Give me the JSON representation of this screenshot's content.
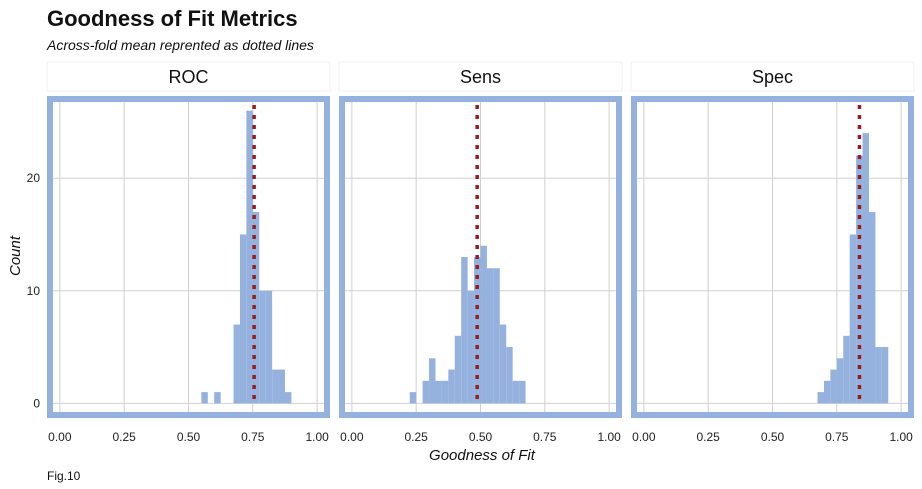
{
  "chart_data": {
    "type": "bar",
    "title": "Goodness of Fit Metrics",
    "subtitle": "Across-fold mean reprented as dotted lines",
    "xlabel": "Goodness of Fit",
    "ylabel": "Count",
    "caption": "Fig.10",
    "xlim": [
      -0.05,
      1.05
    ],
    "ylim": [
      -1.3,
      27.3
    ],
    "x_ticks": [
      "0.00",
      "0.25",
      "0.50",
      "0.75",
      "1.00"
    ],
    "x_tick_values": [
      0,
      0.25,
      0.5,
      0.75,
      1.0
    ],
    "y_ticks": [
      "0",
      "10",
      "20"
    ],
    "y_tick_values": [
      0,
      10,
      20
    ],
    "bin_width": 0.025,
    "grid": true,
    "colors": {
      "bar": "#95b1de",
      "panel_border": "#95b1de",
      "mean_line": "#9b1b1b",
      "grid": "#d0d0d0"
    },
    "panels": [
      {
        "name": "ROC",
        "mean": 0.755,
        "bins": [
          {
            "x": 0.5625,
            "count": 1
          },
          {
            "x": 0.6125,
            "count": 1
          },
          {
            "x": 0.6875,
            "count": 7
          },
          {
            "x": 0.7125,
            "count": 15
          },
          {
            "x": 0.7375,
            "count": 26
          },
          {
            "x": 0.7625,
            "count": 17
          },
          {
            "x": 0.7875,
            "count": 10
          },
          {
            "x": 0.8125,
            "count": 10
          },
          {
            "x": 0.8375,
            "count": 3
          },
          {
            "x": 0.8625,
            "count": 3
          },
          {
            "x": 0.8875,
            "count": 1
          }
        ]
      },
      {
        "name": "Sens",
        "mean": 0.487,
        "bins": [
          {
            "x": 0.2375,
            "count": 1
          },
          {
            "x": 0.2875,
            "count": 2
          },
          {
            "x": 0.3125,
            "count": 4
          },
          {
            "x": 0.3375,
            "count": 2
          },
          {
            "x": 0.3625,
            "count": 2
          },
          {
            "x": 0.3875,
            "count": 3
          },
          {
            "x": 0.4125,
            "count": 6
          },
          {
            "x": 0.4375,
            "count": 13
          },
          {
            "x": 0.4625,
            "count": 10
          },
          {
            "x": 0.4875,
            "count": 13
          },
          {
            "x": 0.5125,
            "count": 14
          },
          {
            "x": 0.5375,
            "count": 12
          },
          {
            "x": 0.5625,
            "count": 12
          },
          {
            "x": 0.5875,
            "count": 7
          },
          {
            "x": 0.6125,
            "count": 5
          },
          {
            "x": 0.6375,
            "count": 2
          },
          {
            "x": 0.6625,
            "count": 2
          }
        ]
      },
      {
        "name": "Spec",
        "mean": 0.838,
        "bins": [
          {
            "x": 0.6875,
            "count": 1
          },
          {
            "x": 0.7125,
            "count": 2
          },
          {
            "x": 0.7375,
            "count": 3
          },
          {
            "x": 0.7625,
            "count": 4
          },
          {
            "x": 0.7875,
            "count": 6
          },
          {
            "x": 0.8125,
            "count": 15
          },
          {
            "x": 0.8375,
            "count": 22
          },
          {
            "x": 0.8625,
            "count": 24
          },
          {
            "x": 0.8875,
            "count": 17
          },
          {
            "x": 0.9125,
            "count": 5
          },
          {
            "x": 0.9375,
            "count": 5
          }
        ]
      }
    ]
  }
}
